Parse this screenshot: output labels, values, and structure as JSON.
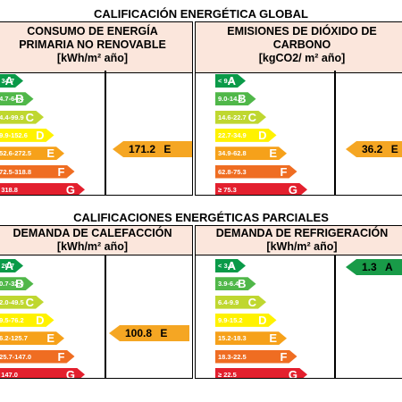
{
  "global_title": "CALIFICACIÓN ENERGÉTICA GLOBAL",
  "partial_title": "CALIFICACIONES ENERGÉTICAS PARCIALES",
  "colors": {
    "A": "#0a9a48",
    "B": "#50b749",
    "C": "#bfd730",
    "D": "#fff200",
    "E": "#f6a11a",
    "F": "#ef6d22",
    "G": "#e3202e",
    "header_bg": "#fbe6dc",
    "marker_orange": "#f5a623",
    "marker_green": "#189b48"
  },
  "panels": {
    "consumo": {
      "title_lines": [
        "CONSUMO DE ENERGÍA",
        "PRIMARIA NO RENOVABLE",
        "[kWh/m² año]"
      ],
      "ranges": [
        "< 34.7",
        "34.7-64.4",
        "64.4-99.9",
        "99.9-152.6",
        "152.6-272.5",
        "272.5-318.8",
        "≥ 318.8"
      ],
      "letters": [
        "A",
        "B",
        "C",
        "D",
        "E",
        "F",
        "G"
      ],
      "rating": {
        "value": "171.2",
        "letter": "E"
      }
    },
    "emisiones": {
      "title_lines": [
        "EMISIONES DE DIÓXIDO DE",
        "CARBONO",
        "[kgCO2/ m² año]"
      ],
      "ranges": [
        "< 9.0",
        "9.0-14.6",
        "14.6-22.7",
        "22.7-34.9",
        "34.9-62.8",
        "62.8-75.3",
        "≥ 75.3"
      ],
      "letters": [
        "A",
        "B",
        "C",
        "D",
        "E",
        "F",
        "G"
      ],
      "rating": {
        "value": "36.2",
        "letter": "E"
      }
    },
    "calefaccion": {
      "title_lines": [
        "DEMANDA DE CALEFACCIÓN",
        "[kWh/m² año]"
      ],
      "ranges": [
        "< 20.7",
        "20.7-32.0",
        "32.0-49.5",
        "49.5-76.2",
        "76.2-125.7",
        "125.7-147.0",
        "≥ 147.0"
      ],
      "letters": [
        "A",
        "B",
        "C",
        "D",
        "E",
        "F",
        "G"
      ],
      "rating": {
        "value": "100.8",
        "letter": "E"
      }
    },
    "refrigeracion": {
      "title_lines": [
        "DEMANDA DE REFRIGERACIÓN",
        "[kWh/m² año]"
      ],
      "ranges": [
        "< 3.9",
        "3.9-6.4",
        "6.4-9.9",
        "9.9-15.2",
        "15.2-18.3",
        "18.3-22.5",
        "≥ 22.5"
      ],
      "letters": [
        "A",
        "B",
        "C",
        "D",
        "E",
        "F",
        "G"
      ],
      "rating": {
        "value": "1.3",
        "letter": "A"
      }
    }
  }
}
